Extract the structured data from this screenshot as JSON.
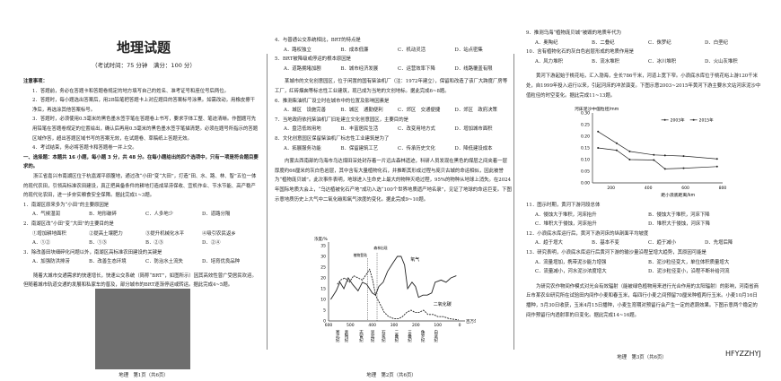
{
  "page1": {
    "title": "地理试题",
    "subtitle": "（考试时间：75 分钟　满分：100 分）",
    "notes_heading": "注意事项：",
    "notes": [
      "1．答题前，务必在答题卡和答题卷规定的地方填写自己的姓名、准考证号和座位号后两位。",
      "2．答题时，每小题选出答案后，用2B铅笔把答题卡上对应题目的答案标号涂黑。如需改动，用橡皮擦干净后，再选涂其他答案标号。",
      "3．答题时，必须使用0.5毫米的黑色墨水签字笔在答题卷上书写，要求字体工整、笔迹清晰。作图题可先用铅笔在答题卷规定的位置绘出，确认后再用0.5毫米的黑色墨水签字笔描清楚。必须在题号所指示的答题区域作答，超出答题区域书写的答案无效，在试题卷、草稿纸上答题无效。",
      "4．考试结束，务必将答题卡和答题卷一并上交。"
    ],
    "section": "一、选择题：本题共 16 小题，每小题 3 分，共 48 分。在每小题给出的四个选项中，只有一项是符合题目要求的。",
    "passage1": "浙江省嘉兴市南湖区位于杭嘉湖平原腹地，通过改“小田”变“大田”，打造“田、水、路、林、智”五位一体的现代农田，引领高标准农田建设，真正把具备条件的耕地打造成旱涝保收、宜机作业、节水节能、高产稳产的现代化农田，进一步夯实粮食安全保障。据此完成1~3题。",
    "q1": {
      "stem": "1．南湖区原来多为“小田”的主要原因是",
      "options": [
        "A．气候湿润",
        "B．地形破碎",
        "C．人多地少",
        "D．道路分隔"
      ]
    },
    "q2": {
      "stem": "2．南湖区改“小田”变“大田”的主要目的是",
      "items": [
        "①增加耕地面积",
        "②提高土壤肥力",
        "③提升机械化水平",
        "④吸引农民返乡"
      ],
      "options": [
        "A．①②",
        "B．①③",
        "B．②③",
        "D．②④"
      ]
    },
    "q3": {
      "stem": "3．除改善田块细碎化问题以外，南湖区高标准农田建设的关键是",
      "options": [
        "A．加强防洪排涝",
        "B．改善生态环境",
        "C．防治水土流失",
        "D．培育优良品种"
      ]
    },
    "passage2": "随着大城市交通需求的快速增长，快速公交系统（简称“BRT”，如图所示）因其高效性曾广受居民欢迎。但随着城市轨道交通的发展和私家车的普及，部分城市的BRT逐渐停运或转运。据此完成4~5题。",
    "footer": "地理　第1页（共6页）"
  },
  "page2": {
    "q4": {
      "stem": "4．与普通公交系统相比，BRT的特点是",
      "options": [
        "A．路权独立",
        "B．成本低廉",
        "C．机动灵活",
        "D．站点密集"
      ]
    },
    "q5": {
      "stem": "5．BRT被降级或停运的根本原因是",
      "options": [
        "A．道路拥堵加剧",
        "B．城市经济发展",
        "C．运营效率下降",
        "D．线路覆盖有限"
      ]
    },
    "passage3": "某城市的文化创意园区，位于闲置的国有柴油机厂（注：1972年建立），保留和改造了该厂大跨度厂房等工厂，红砖烟囱等标志性工业建筑，现已成为当地的文创地标。据此完成6~8题。",
    "q6": {
      "stem": "6．推测柴油机厂设立时在城市中的位置及影响因素是",
      "options": [
        "A．城区　设施完善",
        "B．城区　通勤便利",
        "C．郊区　交通便捷",
        "D．郊区　政府决策"
      ]
    },
    "q7": {
      "stem": "7．当地政府依托柴油机厂旧址建立文化创意园区，主要目的是",
      "options": [
        "A．盘活低效用地",
        "B．丰富居民生活",
        "C．改变用地方式",
        "D．增加城市面积"
      ]
    },
    "q8": {
      "stem": "8．文化创意园区保留柴油机厂标志性工业建筑是为了",
      "options": [
        "A．拓展服务功能",
        "B．保留建筑工艺",
        "C．传承历史文化",
        "D．降低建设成本"
      ]
    },
    "passage4": "内蒙古西南部的乌海市乌达煤田深处封存着一片远古森林遗迹，科研人员发现在黑色的煤层之间夹着一层厚度约66厘米的灰白色岩层，其中含有大量植物化石，并推断其形成过程与庞贝古城的命运相似，因此被誉为“植物庞贝城”。此次事件表明，地球进入生命史上最大的物种灭绝过程，95%的物种从地球上消失。在2024年国际地质大会上，“乌达植被化石产地”成功入选“100个世界地质遗产地名录”，见证了地球的命运巨变。下图示意地质历史上大气中二氧化碳和氧气浓度的变化。据此完成9~10题。",
    "footer": "地理　第2页（共6页）"
  },
  "page3": {
    "q9": {
      "stem": "9．推测乌海“植物庞贝城”被毁的地质年代为",
      "options": [
        "A．奥陶纪",
        "B．二叠纪",
        "C．侏罗纪",
        "D．白垩纪"
      ]
    },
    "q10": {
      "stem": "10．含有植物化石的灰白色岩层形成的地质作用是",
      "options": [
        "A．风力堆积",
        "B．流水堆积",
        "C．冰川堆积",
        "D．火山灰堆积"
      ]
    },
    "passage5": "黄河下游起始于桃花峪，汇入渤海，全长786千米，河道上宽下窄。小浪底水库位于桃花峪上游120千米处，自1999年投入运行以来，引起河床的冲淤演变。下图示意2003~2015年黄河下游主要水文站河床泥沙中值粒径的时空变化。据此完成11~13题。",
    "q11": {
      "stem": "11．图示时期，黄河下游河段总体",
      "options": [
        "A．侵蚀大于堆积，河床抬升",
        "B．侵蚀大于堆积，河床下降",
        "C．堆积大于侵蚀，河床抬升",
        "D．堆积大于侵蚀，河床下降"
      ]
    },
    "q12": {
      "stem": "12．小浪底水库运行后，黄河下游河床的纵剖面平均坡度",
      "options": [
        "A．趋于增大",
        "B．基本不变",
        "C．趋于减小",
        "D．先增后降"
      ]
    },
    "q13": {
      "stem": "13．研究表明，小浪底水库运行后黄河下游的输沙量沿程呈增大趋势，其原因可能是",
      "options": [
        "A．流量增加，携带泥沙能力增强",
        "B．泥沙粒径变大，单位体积质量增大",
        "C．流量减小，河水泥沙浓度增大",
        "D．泥沙粒径变小，沿程不断补给河流"
      ]
    },
    "passage6": "为研究农作物间作模式对光合有效辐射（能被绿色植物用来进行光合作用的太阳辐射）的影响，河南省商丘市某农业研究所在试验田内间作小麦和春玉米，每四行小麦之间预留70厘米种植两行玉米。小麦10月16日播种，5月30日收获，玉米4月15日播种，小麦生育期对预留行会产生一定的遮荫效果。下图示意两个稳定的间作预留行内透射率的日变化。据此完成14~16题。",
    "footer": "地理　第3页（共6页）",
    "code": "HFYZZHYJ"
  },
  "chart_data": [
    {
      "type": "line",
      "ylabel": "浓度/%",
      "xlabel": "百万年",
      "xlim": [
        600,
        0
      ],
      "ylim": [
        0,
        35
      ],
      "x_ticks": [
        600,
        500,
        400,
        300,
        200,
        100,
        0
      ],
      "y_ticks": [
        0,
        5,
        10,
        15,
        20,
        25,
        30,
        35
      ],
      "periods": [
        "寒武纪",
        "奥陶纪",
        "志留纪",
        "泥盆纪",
        "石炭纪",
        "二叠纪",
        "三叠纪",
        "侏罗纪",
        "白垩纪"
      ],
      "markers": [
        {
          "label": "植物登陆",
          "x": 422
        },
        {
          "label": "森林出现",
          "x": 378
        }
      ],
      "series": [
        {
          "name": "氧气",
          "points": [
            [
              590,
              10
            ],
            [
              565,
              14
            ],
            [
              548,
              18
            ],
            [
              530,
              15
            ],
            [
              510,
              20
            ],
            [
              490,
              17
            ],
            [
              465,
              14
            ],
            [
              445,
              18
            ],
            [
              425,
              17
            ],
            [
              400,
              13
            ],
            [
              385,
              12
            ],
            [
              370,
              16
            ],
            [
              350,
              18
            ],
            [
              330,
              23
            ],
            [
              305,
              27
            ],
            [
              285,
              30
            ],
            [
              268,
              30
            ],
            [
              252,
              26
            ],
            [
              238,
              15
            ],
            [
              218,
              18
            ],
            [
              202,
              16
            ],
            [
              188,
              11
            ],
            [
              168,
              12
            ],
            [
              148,
              12
            ],
            [
              128,
              13
            ],
            [
              112,
              18
            ],
            [
              85,
              19
            ],
            [
              62,
              18
            ],
            [
              40,
              20
            ],
            [
              15,
              21
            ]
          ]
        },
        {
          "name": "二氧化碳",
          "points": [
            [
              560,
              17
            ],
            [
              545,
              19
            ],
            [
              525,
              20
            ],
            [
              505,
              18
            ],
            [
              485,
              21
            ],
            [
              465,
              20
            ],
            [
              445,
              19
            ],
            [
              425,
              22
            ],
            [
              412,
              24
            ],
            [
              398,
              19
            ],
            [
              385,
              12
            ],
            [
              365,
              8
            ],
            [
              345,
              4
            ],
            [
              325,
              2
            ],
            [
              300,
              1
            ],
            [
              280,
              1
            ],
            [
              262,
              2
            ],
            [
              242,
              4
            ],
            [
              222,
              5
            ],
            [
              205,
              4
            ],
            [
              185,
              4
            ],
            [
              165,
              5
            ],
            [
              145,
              3
            ],
            [
              120,
              3
            ],
            [
              100,
              2
            ],
            [
              75,
              2
            ],
            [
              45,
              1
            ],
            [
              5,
              0.5
            ]
          ]
        }
      ]
    },
    {
      "type": "line",
      "ylabel": "河床泥沙中值粒径/mm",
      "xlabel": "距小浪底距离/km",
      "xlim": [
        100,
        800
      ],
      "ylim": [
        0,
        0.3
      ],
      "x_ticks": [
        200,
        400,
        600,
        800
      ],
      "y_ticks": [
        "0.00",
        "0.05",
        "0.10",
        "0.15",
        "0.20",
        "0.25",
        "0.30"
      ],
      "legend": "top-right",
      "series": [
        {
          "name": "2003年",
          "points": [
            [
              130,
              0.22
            ],
            [
              230,
              0.17
            ],
            [
              300,
              0.135
            ],
            [
              430,
              0.12
            ],
            [
              490,
              0.118
            ],
            [
              590,
              0.115
            ],
            [
              770,
              0.103
            ]
          ]
        },
        {
          "name": "2015年",
          "points": [
            [
              130,
              0.15
            ],
            [
              230,
              0.14
            ],
            [
              300,
              0.1
            ],
            [
              430,
              0.098
            ],
            [
              490,
              0.06
            ],
            [
              590,
              0.063
            ],
            [
              770,
              0.07
            ]
          ]
        }
      ]
    }
  ]
}
